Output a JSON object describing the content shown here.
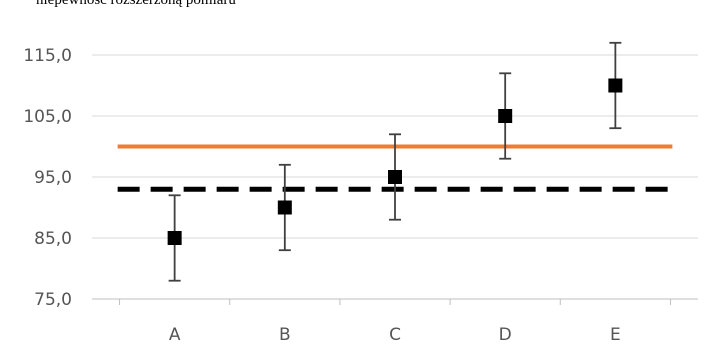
{
  "caption": "niepewność rozszerzoną pomiaru",
  "chart_data": {
    "type": "scatter",
    "title": "",
    "xlabel": "",
    "ylabel": "",
    "categories": [
      "A",
      "B",
      "C",
      "D",
      "E"
    ],
    "series": [
      {
        "values": [
          85.0,
          90.0,
          95.0,
          105.0,
          110.0
        ],
        "error_low": [
          78.0,
          83.0,
          88.0,
          98.0,
          103.0
        ],
        "error_high": [
          92.0,
          97.0,
          102.0,
          112.0,
          117.0
        ],
        "marker": "square",
        "color": "#000000"
      }
    ],
    "reference_lines": [
      {
        "value": 100.0,
        "style": "solid",
        "color": "#ED7D31"
      },
      {
        "value": 93.0,
        "style": "dashed",
        "color": "#000000"
      }
    ],
    "ylim": [
      75.0,
      115.0
    ],
    "yticks": [
      "75,0",
      "85,0",
      "95,0",
      "105,0",
      "115,0"
    ],
    "grid": true,
    "legend": "none"
  }
}
